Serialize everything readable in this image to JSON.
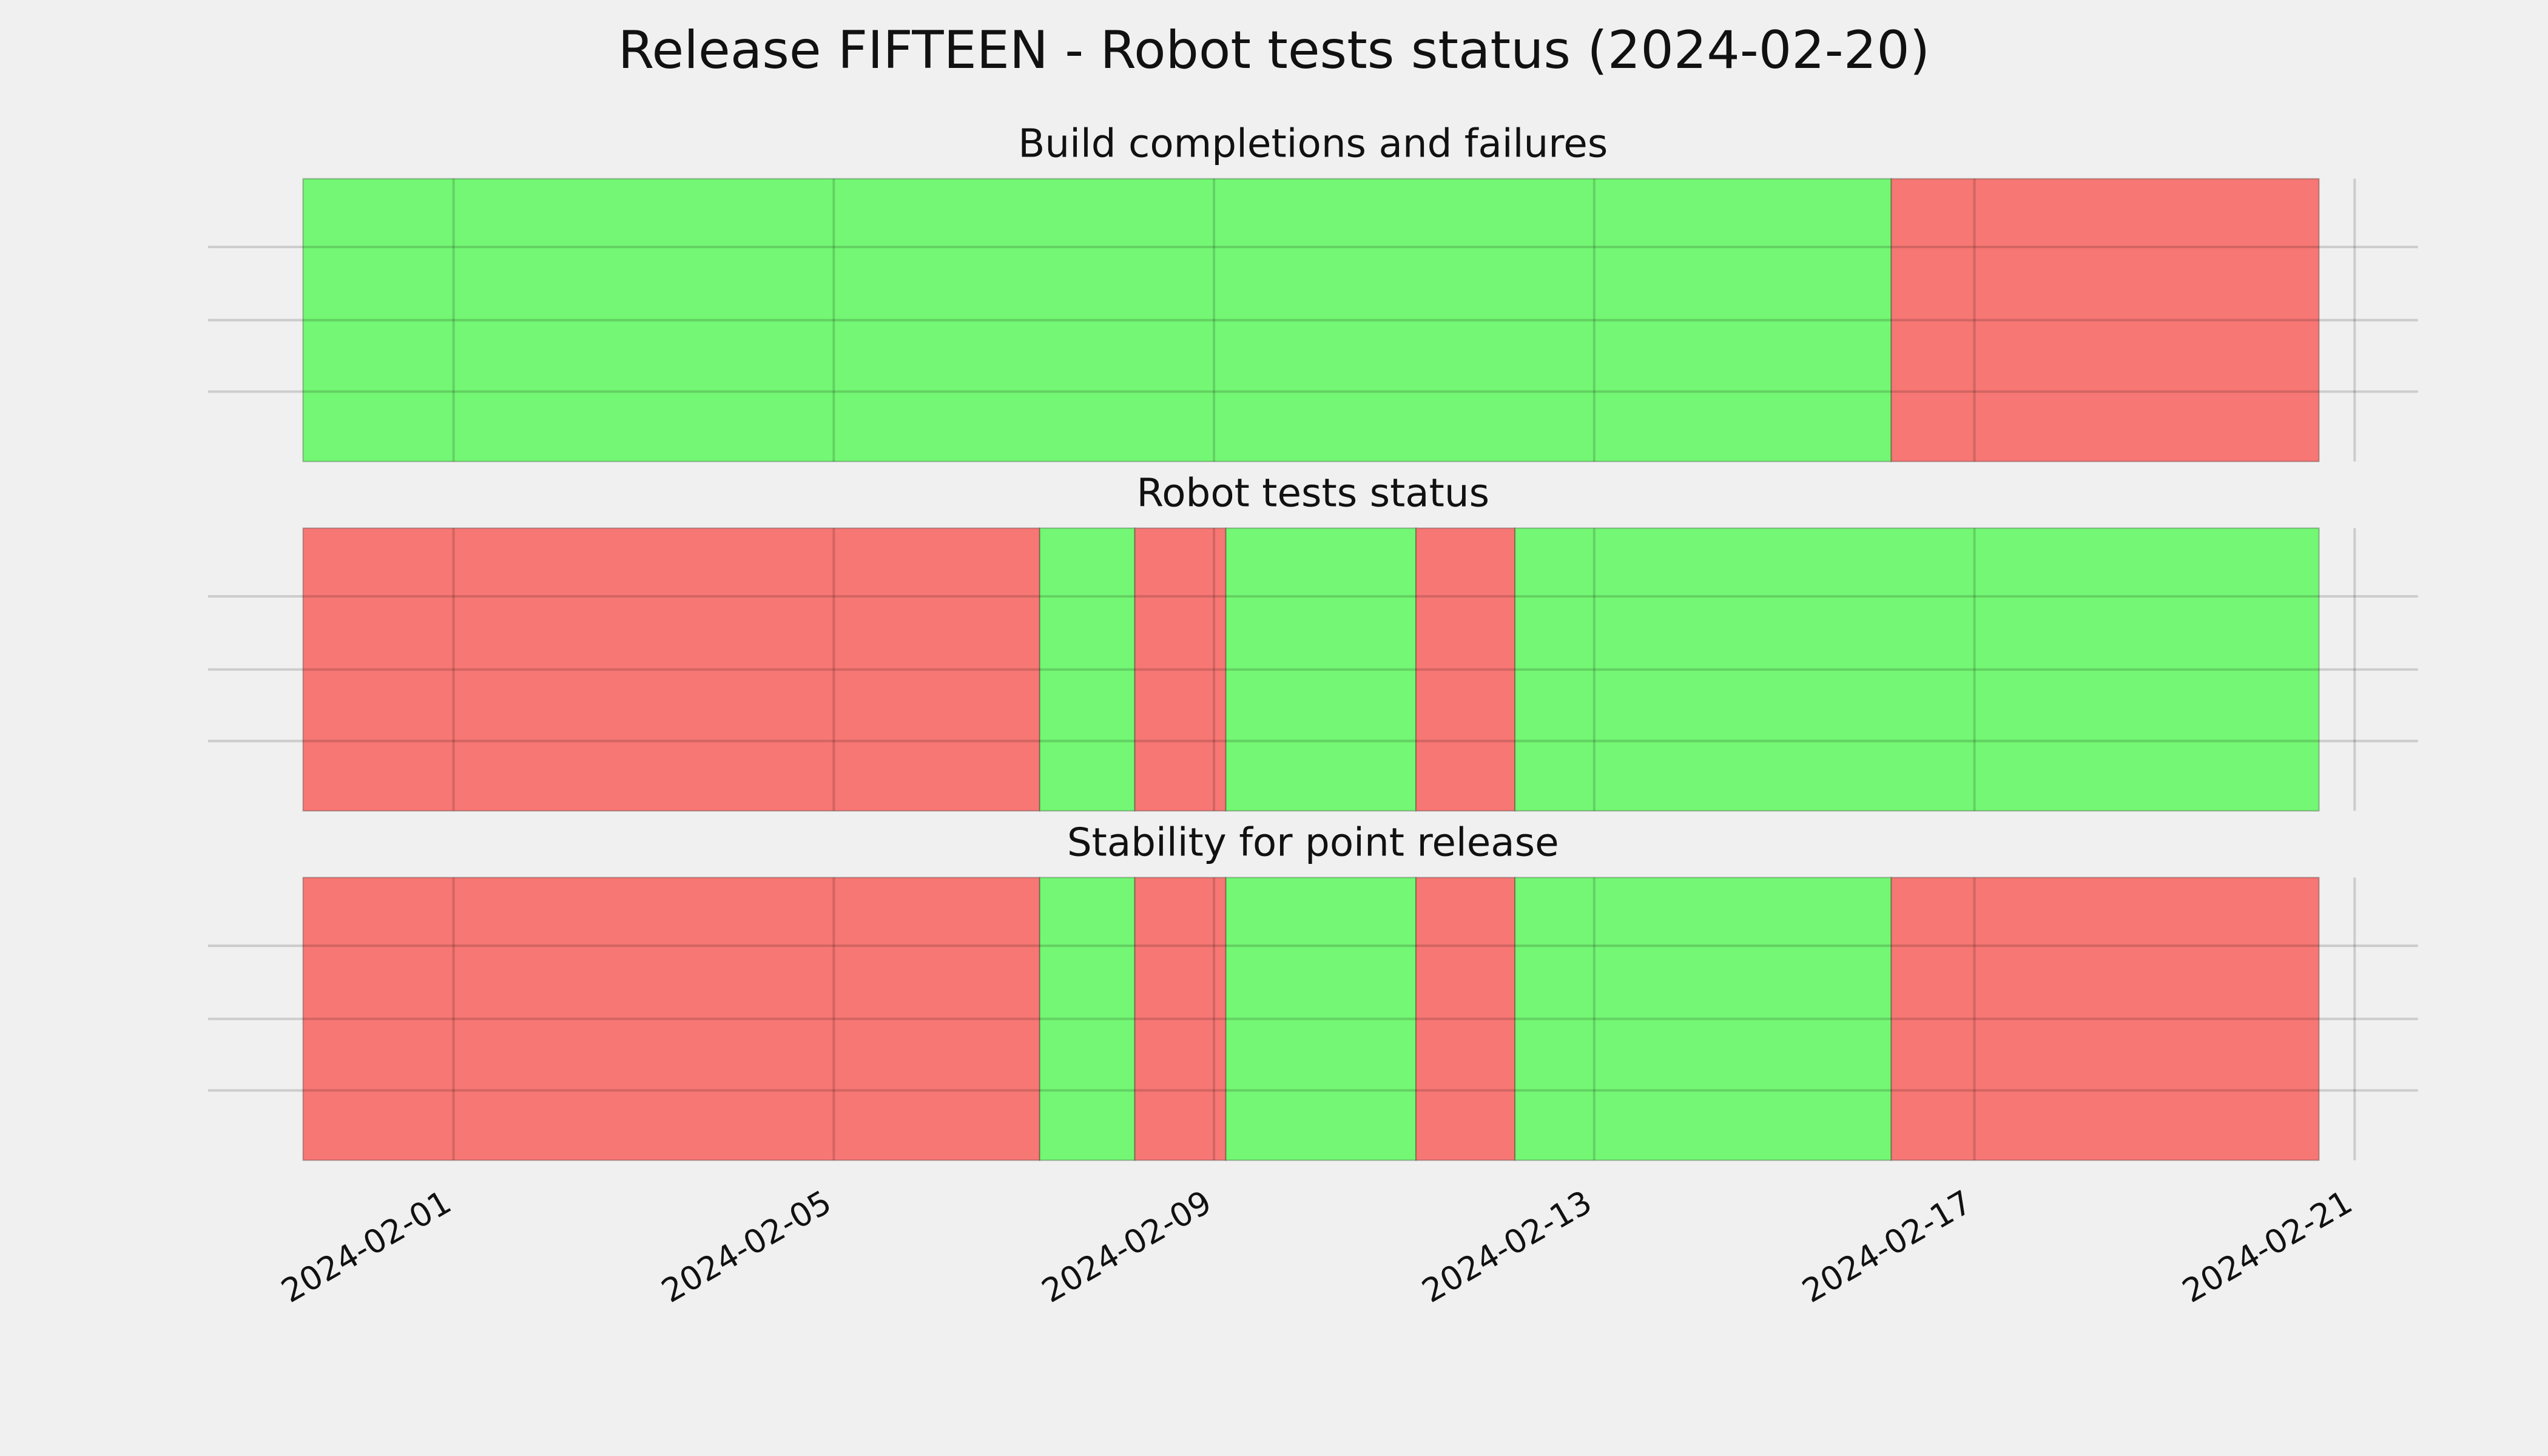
{
  "title": "Release FIFTEEN - Robot tests status (2024-02-20)",
  "xlim": [
    "2024-01-29T10:00",
    "2024-02-21T16:00"
  ],
  "xticks": [
    "2024-02-01",
    "2024-02-05",
    "2024-02-09",
    "2024-02-13",
    "2024-02-17",
    "2024-02-21"
  ],
  "chart_data": [
    {
      "type": "timeline",
      "title": "Build completions and failures",
      "grid": true,
      "segments": [
        {
          "start": "2024-01-30T10:00",
          "end": "2024-02-16T03:00",
          "color": "#74f774"
        },
        {
          "start": "2024-02-16T03:00",
          "end": "2024-02-20T15:00",
          "color": "#f77774"
        }
      ]
    },
    {
      "type": "timeline",
      "title": "Robot tests status",
      "grid": true,
      "segments": [
        {
          "start": "2024-01-30T10:00",
          "end": "2024-02-07T04:00",
          "color": "#f77774"
        },
        {
          "start": "2024-02-07T04:00",
          "end": "2024-02-08T04:00",
          "color": "#74f774"
        },
        {
          "start": "2024-02-08T04:00",
          "end": "2024-02-09T03:00",
          "color": "#f77774"
        },
        {
          "start": "2024-02-09T03:00",
          "end": "2024-02-11T03:00",
          "color": "#74f774"
        },
        {
          "start": "2024-02-11T03:00",
          "end": "2024-02-12T04:00",
          "color": "#f77774"
        },
        {
          "start": "2024-02-12T04:00",
          "end": "2024-02-20T15:00",
          "color": "#74f774"
        }
      ]
    },
    {
      "type": "timeline",
      "title": "Stability for point release",
      "grid": true,
      "segments": [
        {
          "start": "2024-01-30T10:00",
          "end": "2024-02-07T04:00",
          "color": "#f77774"
        },
        {
          "start": "2024-02-07T04:00",
          "end": "2024-02-08T04:00",
          "color": "#74f774"
        },
        {
          "start": "2024-02-08T04:00",
          "end": "2024-02-09T03:00",
          "color": "#f77774"
        },
        {
          "start": "2024-02-09T03:00",
          "end": "2024-02-11T03:00",
          "color": "#74f774"
        },
        {
          "start": "2024-02-11T03:00",
          "end": "2024-02-12T04:00",
          "color": "#f77774"
        },
        {
          "start": "2024-02-12T04:00",
          "end": "2024-02-16T03:00",
          "color": "#74f774"
        },
        {
          "start": "2024-02-16T03:00",
          "end": "2024-02-20T15:00",
          "color": "#f77774"
        }
      ]
    }
  ]
}
